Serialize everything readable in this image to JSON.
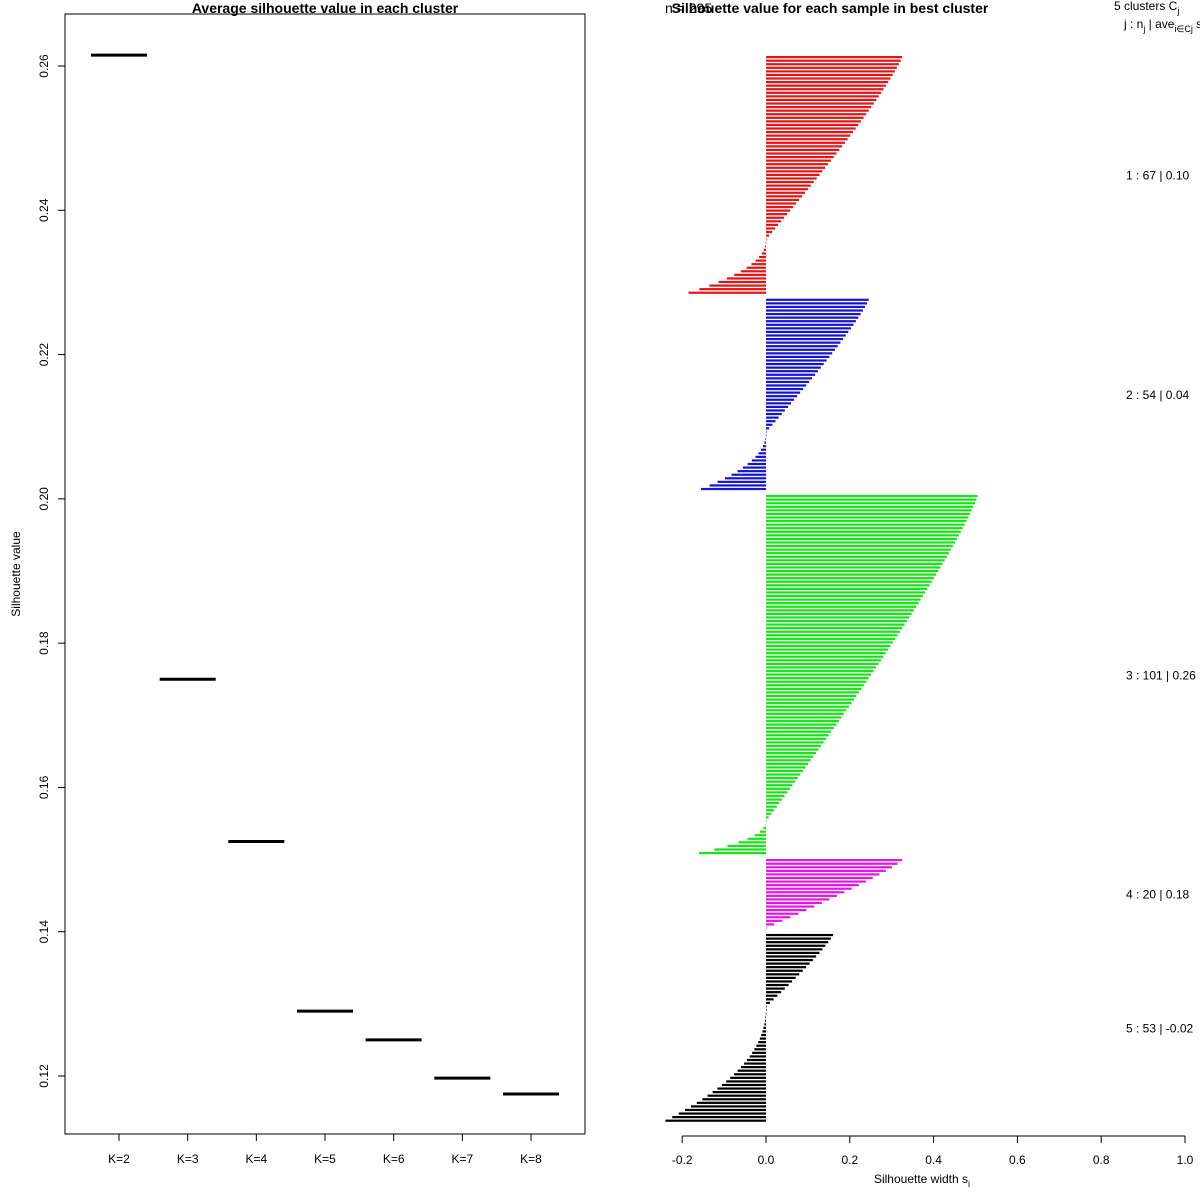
{
  "chart_data": [
    {
      "type": "line",
      "title": "Average silhouette value in each cluster",
      "xlabel": "",
      "ylabel": "Silhouette value",
      "categories": [
        "K=2",
        "K=3",
        "K=4",
        "K=5",
        "K=6",
        "K=7",
        "K=8"
      ],
      "values": [
        0.2615,
        0.175,
        0.1525,
        0.129,
        0.125,
        0.1197,
        0.1175
      ],
      "y_ticks": [
        "0.12",
        "0.14",
        "0.16",
        "0.18",
        "0.20",
        "0.22",
        "0.24",
        "0.26"
      ],
      "ylim": [
        0.112,
        0.268
      ]
    },
    {
      "type": "bar",
      "title": "Silhouette value for each sample in best cluster",
      "overlapped_title_text": "n = 295",
      "xlabel": "Silhouette width s",
      "xlabel_subscript": "i",
      "x_ticks": [
        "-0.2",
        "0.0",
        "0.2",
        "0.4",
        "0.6",
        "0.8",
        "1.0"
      ],
      "xlim": [
        -0.24,
        1.0
      ],
      "legend_header_1": "5  clusters  C",
      "legend_header_1_sub": "j",
      "legend_header_2": "j :  n",
      "legend_header_2_sub": "j",
      "legend_header_2_mid": " | ave",
      "legend_header_2_sub2": "i∈Cj",
      "legend_header_2_end": "  s",
      "clusters": [
        {
          "id": 1,
          "n": 67,
          "label": "1 :   67  |  0.10",
          "color": "#e41414",
          "max": 0.32,
          "positive": 52,
          "neg_min": -0.185
        },
        {
          "id": 2,
          "n": 54,
          "label": "2 :   54  |  0.04",
          "color": "#1414d2",
          "max": 0.24,
          "positive": 38,
          "neg_min": -0.155
        },
        {
          "id": 3,
          "n": 101,
          "label": "3 :  101  |  0.26",
          "color": "#14e614",
          "max": 0.5,
          "positive": 92,
          "neg_min": -0.16
        },
        {
          "id": 4,
          "n": 20,
          "label": "4 :   20  |  0.18",
          "color": "#e614e6",
          "max": 0.32,
          "positive": 20,
          "neg_min": 0
        },
        {
          "id": 5,
          "n": 53,
          "label": "5 :   53  |  -0.02",
          "color": "#000000",
          "max": 0.155,
          "positive": 21,
          "neg_min": -0.24
        }
      ]
    }
  ]
}
